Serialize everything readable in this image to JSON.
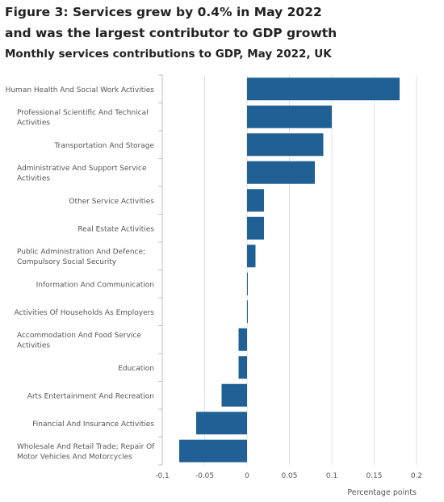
{
  "figure": {
    "title": "Figure 3: Services grew by 0.4% in May 2022 and was the largest contributor to GDP growth",
    "subtitle": "Monthly services contributions to GDP, May 2022, UK"
  },
  "chart_data": {
    "type": "bar",
    "orientation": "horizontal",
    "categories": [
      "Human Health And Social Work Activities",
      "Professional Scientific And Technical Activities",
      "Transportation And Storage",
      "Administrative And Support Service Activities",
      "Other Service Activities",
      "Real Estate Activities",
      "Public Administration And Defence; Compulsory Social Security",
      "Information And Communication",
      "Activities Of Households As Employers",
      "Accommodation And Food Service Activities",
      "Education",
      "Arts Entertainment And Recreation",
      "Financial And Insurance Activities",
      "Wholesale And Retail Trade; Repair Of Motor Vehicles And Motorcycles"
    ],
    "category_lines": [
      [
        "Human Health And Social Work Activities"
      ],
      [
        "Professional Scientific And Technical",
        "Activities"
      ],
      [
        "Transportation And Storage"
      ],
      [
        "Administrative And Support Service",
        "Activities"
      ],
      [
        "Other Service Activities"
      ],
      [
        "Real Estate Activities"
      ],
      [
        "Public Administration And Defence;",
        "Compulsory Social Security"
      ],
      [
        "Information And Communication"
      ],
      [
        "Activities Of Households As Employers"
      ],
      [
        "Accommodation And Food Service",
        "Activities"
      ],
      [
        "Education"
      ],
      [
        "Arts Entertainment And Recreation"
      ],
      [
        "Financial And Insurance Activities"
      ],
      [
        "Wholesale And Retail Trade; Repair Of",
        "Motor Vehicles And Motorcycles"
      ]
    ],
    "values": [
      0.18,
      0.1,
      0.09,
      0.08,
      0.02,
      0.02,
      0.01,
      0.0,
      0.0,
      -0.01,
      -0.01,
      -0.03,
      -0.06,
      -0.08
    ],
    "xlim": [
      -0.1,
      0.2
    ],
    "xticks": [
      "-0.1",
      "-0.05",
      "0",
      "0.05",
      "0.1",
      "0.15",
      "0.2"
    ],
    "xtick_values": [
      -0.1,
      -0.05,
      0,
      0.05,
      0.1,
      0.15,
      0.2
    ],
    "xlabel": "Percentage points",
    "ylabel": "",
    "grid": true,
    "colors": {
      "bar": "#206095",
      "grid": "#e2e2e2",
      "axis": "#bebebe",
      "label": "#555555",
      "title": "#222222"
    }
  }
}
